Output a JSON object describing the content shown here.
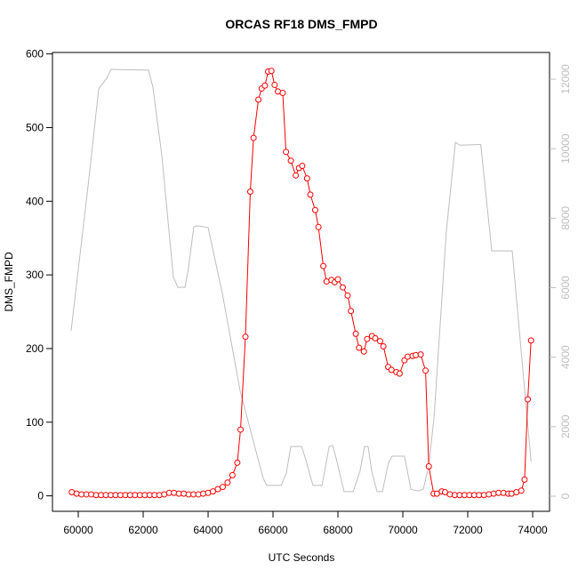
{
  "chart_data": {
    "type": "line",
    "title": "ORCAS RF18 DMS_FMPD",
    "x_label": "UTC Seconds",
    "y_label": "DMS_FMPD",
    "xlim": [
      59205,
      74520
    ],
    "xticks": [
      60000,
      62000,
      64000,
      66000,
      68000,
      70000,
      72000,
      74000
    ],
    "ylim": [
      -21,
      602
    ],
    "yticks": [
      0,
      100,
      200,
      300,
      400,
      500,
      600
    ],
    "y2lim": [
      -435,
      12768
    ],
    "y2ticks": [
      0,
      2000,
      4000,
      6000,
      8000,
      10000,
      12000
    ],
    "y2_color": "#bebebe",
    "series": [
      {
        "color": "#bebebe",
        "axis": "y2",
        "markers": false,
        "x": [
          59780,
          60330,
          60630,
          60880,
          61010,
          62165,
          62300,
          62575,
          62930,
          63070,
          63290,
          63400,
          63560,
          63670,
          64000,
          64440,
          64990,
          65530,
          65700,
          65810,
          66250,
          66410,
          66550,
          66880,
          67010,
          67230,
          67510,
          67730,
          67840,
          67950,
          68190,
          68470,
          68680,
          68820,
          68930,
          69040,
          69205,
          69370,
          69560,
          69670,
          70050,
          70250,
          70470,
          70630,
          70795,
          70960,
          71340,
          71620,
          71750,
          72400,
          72740,
          73370,
          73950
        ],
        "values": [
          4760,
          9160,
          11720,
          12030,
          12280,
          12260,
          11770,
          9800,
          6300,
          6010,
          6010,
          6600,
          7750,
          7780,
          7730,
          5830,
          3020,
          1100,
          510,
          310,
          310,
          670,
          1430,
          1430,
          1050,
          310,
          310,
          1430,
          1460,
          1070,
          130,
          130,
          720,
          1430,
          1430,
          720,
          130,
          130,
          970,
          1150,
          1150,
          200,
          150,
          200,
          850,
          2250,
          7620,
          10180,
          10100,
          10120,
          7060,
          7060,
          1000
        ]
      },
      {
        "color": "#ff0000",
        "axis": "y",
        "markers": true,
        "x": [
          59800,
          59950,
          60100,
          60250,
          60400,
          60550,
          60700,
          60850,
          61000,
          61150,
          61300,
          61450,
          61600,
          61750,
          61900,
          62050,
          62200,
          62350,
          62500,
          62650,
          62800,
          62950,
          63100,
          63250,
          63400,
          63550,
          63700,
          63850,
          64000,
          64150,
          64300,
          64450,
          64600,
          64750,
          64900,
          65000,
          65150,
          65300,
          65400,
          65550,
          65650,
          65750,
          65850,
          65950,
          66050,
          66150,
          66300,
          66400,
          66550,
          66700,
          66800,
          66900,
          67050,
          67150,
          67300,
          67400,
          67550,
          67650,
          67800,
          67900,
          68000,
          68150,
          68300,
          68400,
          68550,
          68650,
          68800,
          68900,
          69050,
          69150,
          69300,
          69400,
          69550,
          69650,
          69800,
          69900,
          70050,
          70150,
          70300,
          70400,
          70550,
          70700,
          70800,
          70950,
          71050,
          71200,
          71300,
          71450,
          71600,
          71750,
          71900,
          72050,
          72200,
          72350,
          72500,
          72650,
          72800,
          72950,
          73100,
          73250,
          73350,
          73500,
          73650,
          73750,
          73850,
          73950
        ],
        "values": [
          5,
          3,
          2,
          2,
          2,
          1,
          1,
          1,
          1,
          1,
          1,
          1,
          1,
          1,
          1,
          1,
          1,
          1,
          1,
          2,
          4,
          4,
          3,
          3,
          2,
          2,
          2,
          3,
          4,
          6,
          9,
          12,
          18,
          28,
          45,
          90,
          216,
          413,
          486,
          538,
          553,
          557,
          576,
          577,
          558,
          549,
          547,
          467,
          455,
          435,
          445,
          448,
          431,
          409,
          388,
          365,
          312,
          291,
          293,
          290,
          294,
          283,
          272,
          251,
          220,
          201,
          196,
          213,
          217,
          214,
          210,
          203,
          175,
          171,
          168,
          166,
          184,
          189,
          190,
          191,
          192,
          170,
          40,
          3,
          3,
          6,
          5,
          2,
          1,
          1,
          1,
          1,
          1,
          1,
          1,
          2,
          3,
          4,
          4,
          3,
          3,
          5,
          7,
          22,
          131,
          211
        ]
      }
    ]
  }
}
